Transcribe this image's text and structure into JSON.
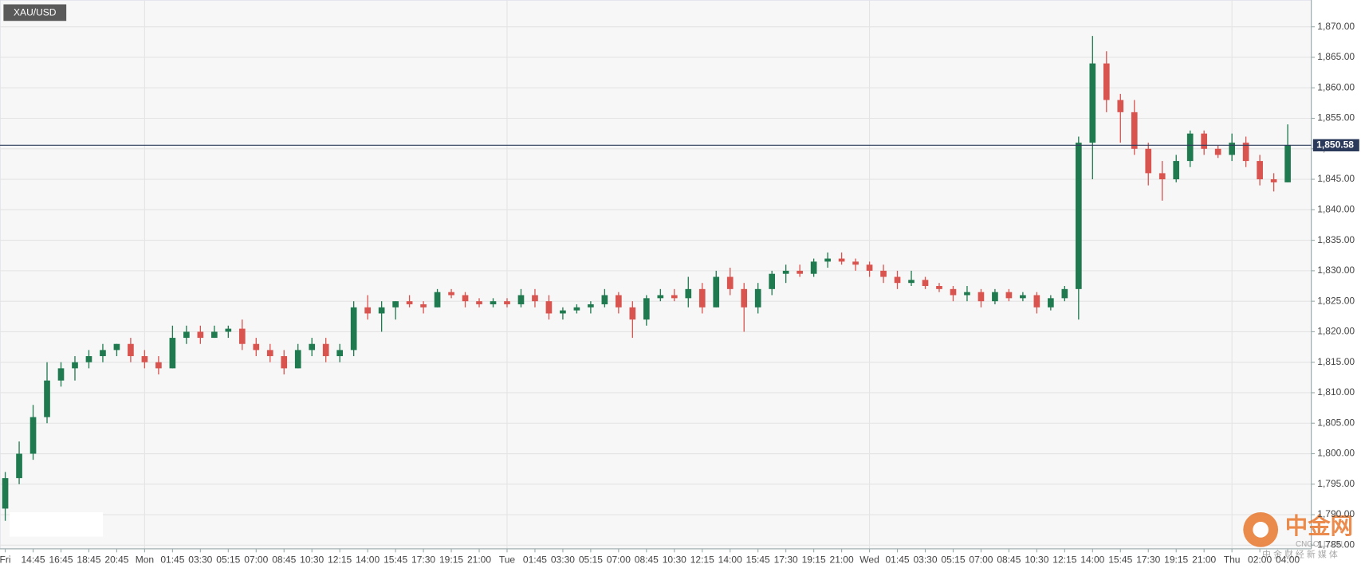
{
  "chart_data": {
    "type": "candlestick",
    "title": "XAU/USD",
    "categories": [
      "Fri",
      null,
      "14:45",
      null,
      "16:45",
      null,
      "18:45",
      null,
      "20:45",
      null,
      "Mon",
      null,
      "01:45",
      null,
      "03:30",
      null,
      "05:15",
      null,
      "07:00",
      null,
      "08:45",
      null,
      "10:30",
      null,
      "12:15",
      null,
      "14:00",
      null,
      "15:45",
      null,
      "17:30",
      null,
      "19:15",
      null,
      "21:00",
      null,
      "Tue",
      null,
      "01:45",
      null,
      "03:30",
      null,
      "05:15",
      null,
      "07:00",
      null,
      "08:45",
      null,
      "10:30",
      null,
      "12:15",
      null,
      "14:00",
      null,
      "15:45",
      null,
      "17:30",
      null,
      "19:15",
      null,
      "21:00",
      null,
      "Wed",
      null,
      "01:45",
      null,
      "03:30",
      null,
      "05:15",
      null,
      "07:00",
      null,
      "08:45",
      null,
      "10:30",
      null,
      "12:15",
      null,
      "14:00",
      null,
      "15:45",
      null,
      "17:30",
      null,
      "19:15",
      null,
      "21:00",
      null,
      "Thu",
      null,
      "02:00",
      null,
      "04:00"
    ],
    "open": [
      1791,
      1796,
      1800,
      1806,
      1812,
      1814,
      1815,
      1816,
      1817,
      1818,
      1816,
      1815,
      1814,
      1819,
      1820,
      1819,
      1820,
      1820.5,
      1818,
      1817,
      1816,
      1814,
      1817,
      1818,
      1816,
      1817,
      1824,
      1823,
      1824,
      1825,
      1824.5,
      1824,
      1826.5,
      1826,
      1825,
      1824.5,
      1825,
      1824.5,
      1826,
      1825,
      1823,
      1823.5,
      1824,
      1824.5,
      1826,
      1824,
      1822,
      1825.5,
      1826,
      1825.5,
      1827,
      1824,
      1829,
      1827,
      1824,
      1827,
      1829.5,
      1830,
      1829.5,
      1831.5,
      1832,
      1831.5,
      1831,
      1830,
      1829,
      1828,
      1828.5,
      1827.5,
      1827,
      1826,
      1826.5,
      1825,
      1826.5,
      1825.5,
      1826,
      1824,
      1825.5,
      1827,
      1851,
      1864,
      1858,
      1856,
      1850,
      1846,
      1845,
      1848,
      1852.5,
      1850,
      1849,
      1851,
      1848,
      1845,
      1844.5
    ],
    "high": [
      1797,
      1802,
      1808,
      1815,
      1815,
      1816,
      1817,
      1818,
      1818,
      1819,
      1817,
      1816,
      1821,
      1821,
      1821,
      1821,
      1821,
      1822,
      1819,
      1818,
      1817,
      1818,
      1819,
      1819,
      1818,
      1825,
      1826,
      1825,
      1825,
      1826,
      1825,
      1827,
      1827,
      1826.5,
      1825.5,
      1825.5,
      1825.5,
      1827,
      1827,
      1826,
      1824,
      1824.5,
      1825,
      1827,
      1826.5,
      1825,
      1826,
      1827,
      1827,
      1829,
      1828,
      1830,
      1830.5,
      1828,
      1828,
      1830,
      1831,
      1831,
      1832,
      1833,
      1833,
      1832,
      1831.5,
      1831,
      1830,
      1830,
      1829,
      1828,
      1827.5,
      1827.5,
      1827,
      1827,
      1827,
      1826.5,
      1826.5,
      1826,
      1827.5,
      1852,
      1868.5,
      1866,
      1859,
      1858,
      1851,
      1848,
      1849,
      1853,
      1853,
      1850.5,
      1852.5,
      1852,
      1849,
      1846,
      1854
    ],
    "low": [
      1789,
      1795,
      1799,
      1805,
      1811,
      1812,
      1814,
      1815,
      1816,
      1815,
      1814,
      1813,
      1814,
      1818,
      1818,
      1819,
      1819,
      1817,
      1816,
      1815,
      1813,
      1814,
      1816,
      1815,
      1815,
      1816,
      1822,
      1820,
      1822,
      1824,
      1823,
      1824,
      1825.5,
      1824,
      1824,
      1824,
      1824,
      1824,
      1824,
      1822,
      1822,
      1823,
      1823,
      1824,
      1823,
      1819,
      1821,
      1825,
      1825,
      1824,
      1823,
      1824,
      1826,
      1820,
      1823,
      1826,
      1828,
      1829,
      1829,
      1830.5,
      1831,
      1830,
      1829,
      1828,
      1827,
      1827.5,
      1827,
      1826.5,
      1825,
      1825,
      1824,
      1824.5,
      1825,
      1825,
      1823,
      1823.5,
      1825,
      1822,
      1845,
      1856,
      1851,
      1849,
      1844,
      1841.5,
      1844.5,
      1847,
      1849,
      1848.5,
      1848,
      1847,
      1844,
      1843,
      1844.5
    ],
    "close": [
      1796,
      1800,
      1806,
      1812,
      1814,
      1815,
      1816,
      1817,
      1818,
      1816,
      1815,
      1814,
      1819,
      1820,
      1819,
      1820,
      1820.5,
      1818,
      1817,
      1816,
      1814,
      1817,
      1818,
      1816,
      1817,
      1824,
      1823,
      1824,
      1825,
      1824.5,
      1824,
      1826.5,
      1826,
      1825,
      1824.5,
      1825,
      1824.5,
      1826,
      1825,
      1823,
      1823.5,
      1824,
      1824.5,
      1826,
      1824,
      1822,
      1825.5,
      1826,
      1825.5,
      1827,
      1824,
      1829,
      1827,
      1824,
      1827,
      1829.5,
      1830,
      1829.5,
      1831.5,
      1832,
      1831.5,
      1831,
      1830,
      1829,
      1828,
      1828.5,
      1827.5,
      1827,
      1826,
      1826.5,
      1825,
      1826.5,
      1825.5,
      1826,
      1824,
      1825.5,
      1827,
      1851,
      1864,
      1858,
      1856,
      1850,
      1846,
      1845,
      1848,
      1852.5,
      1850,
      1849,
      1851,
      1848,
      1845,
      1844.5,
      1850.58
    ],
    "up_color": "#1f7a4f",
    "down_color": "#d9534f",
    "ylim": [
      1784.4,
      1874.4
    ],
    "yticks": [
      {
        "value": 1785,
        "label": "1,785.00"
      },
      {
        "value": 1790,
        "label": "1,790.00"
      },
      {
        "value": 1795,
        "label": "1,795.00"
      },
      {
        "value": 1800,
        "label": "1,800.00"
      },
      {
        "value": 1805,
        "label": "1,805.00"
      },
      {
        "value": 1810,
        "label": "1,810.00"
      },
      {
        "value": 1815,
        "label": "1,815.00"
      },
      {
        "value": 1820,
        "label": "1,820.00"
      },
      {
        "value": 1825,
        "label": "1,825.00"
      },
      {
        "value": 1830,
        "label": "1,830.00"
      },
      {
        "value": 1835,
        "label": "1,835.00"
      },
      {
        "value": 1840,
        "label": "1,840.00"
      },
      {
        "value": 1845,
        "label": "1,845.00"
      },
      {
        "value": 1850,
        "label": "1,850.00"
      },
      {
        "value": 1855,
        "label": "1,855.00"
      },
      {
        "value": 1860,
        "label": "1,860.00"
      },
      {
        "value": 1865,
        "label": "1,865.00"
      },
      {
        "value": 1870,
        "label": "1,870.00"
      }
    ],
    "grid": true,
    "last_price": {
      "value": 1850.58,
      "label": "1,850.58"
    }
  },
  "watermark": {
    "brand": "中金网",
    "site": "CNGOLD.CN",
    "slogan": "中 金 财 经 新 媒 体"
  }
}
